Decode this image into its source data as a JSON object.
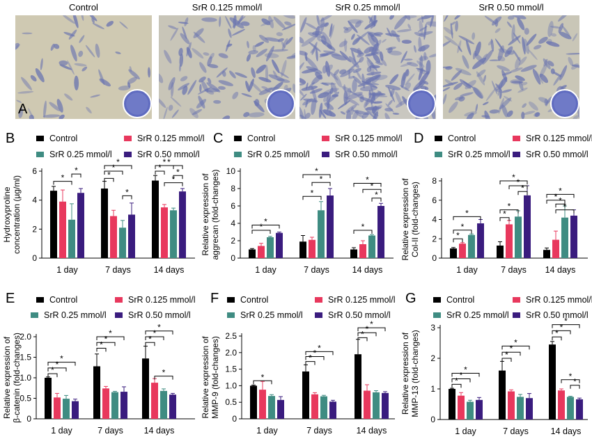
{
  "colors": {
    "Control": "#000000",
    "SrR 0.125 mmol/l": "#e8385d",
    "SrR 0.25 mmol/l": "#3f8c82",
    "SrR 0.50 mmol/l": "#3a1c7e"
  },
  "panel_a": {
    "letter": "A",
    "columns": [
      "Control",
      "SrR 0.125 mmol/l",
      "SrR 0.25 mmol/l",
      "SrR 0.50 mmol/l"
    ]
  },
  "legend_labels": [
    "Control",
    "SrR 0.125 mmol/l",
    "SrR 0.25 mmol/l",
    "SrR 0.50 mmol/l"
  ],
  "chart_data": [
    {
      "panel": "B",
      "type": "bar",
      "categories": [
        "1 day",
        "7 days",
        "14 days"
      ],
      "ylabel": [
        "Hydroxyproline",
        "concentration (µg/ml)"
      ],
      "ylim": [
        0,
        6
      ],
      "yticks": [
        0,
        2,
        4,
        6
      ],
      "series": [
        {
          "name": "Control",
          "values": [
            4.65,
            4.8,
            5.35
          ],
          "errors": [
            0.3,
            0.5,
            0.35
          ]
        },
        {
          "name": "SrR 0.125 mmol/l",
          "values": [
            3.9,
            2.9,
            3.5
          ],
          "errors": [
            0.8,
            0.4,
            0.2
          ]
        },
        {
          "name": "SrR 0.25 mmol/l",
          "values": [
            2.65,
            2.1,
            3.3
          ],
          "errors": [
            1.1,
            0.5,
            0.15
          ]
        },
        {
          "name": "SrR 0.50 mmol/l",
          "values": [
            4.5,
            3.0,
            4.6
          ],
          "errors": [
            0.3,
            0.8,
            0.2
          ]
        }
      ],
      "significance": [
        {
          "group": 0,
          "from": 0,
          "to": 2,
          "y": 5.3
        },
        {
          "group": 0,
          "from": 2,
          "to": 3,
          "y": 5.8
        },
        {
          "group": 1,
          "from": 0,
          "to": 1,
          "y": 5.5
        },
        {
          "group": 1,
          "from": 0,
          "to": 2,
          "y": 6.0
        },
        {
          "group": 1,
          "from": 0,
          "to": 3,
          "y": 6.5
        },
        {
          "group": 1,
          "from": 2,
          "to": 3,
          "y": 4.3
        },
        {
          "group": 2,
          "from": 0,
          "to": 1,
          "y": 6.0
        },
        {
          "group": 2,
          "from": 0,
          "to": 2,
          "y": 6.5
        },
        {
          "group": 2,
          "from": 0,
          "to": 3,
          "y": 7.0
        },
        {
          "group": 2,
          "from": 1,
          "to": 3,
          "y": 5.2
        },
        {
          "group": 2,
          "from": 2,
          "to": 3,
          "y": 5.7
        }
      ]
    },
    {
      "panel": "C",
      "type": "bar",
      "categories": [
        "1 day",
        "7 days",
        "14 days"
      ],
      "ylabel": [
        "Relative expression of",
        "aggrecan (fold-changes)"
      ],
      "ylim": [
        0,
        10
      ],
      "yticks": [
        0,
        2,
        4,
        6,
        8,
        10
      ],
      "series": [
        {
          "name": "Control",
          "values": [
            1.0,
            1.9,
            1.0
          ],
          "errors": [
            0.1,
            0.7,
            0.2
          ]
        },
        {
          "name": "SrR 0.125 mmol/l",
          "values": [
            1.4,
            2.1,
            1.6
          ],
          "errors": [
            0.3,
            0.3,
            0.4
          ]
        },
        {
          "name": "SrR 0.25 mmol/l",
          "values": [
            2.4,
            5.5,
            2.6
          ],
          "errors": [
            0.1,
            1.0,
            0.1
          ]
        },
        {
          "name": "SrR 0.50 mmol/l",
          "values": [
            2.9,
            7.2,
            6.0
          ],
          "errors": [
            0.1,
            0.8,
            0.3
          ]
        }
      ],
      "significance": [
        {
          "group": 0,
          "from": 0,
          "to": 2,
          "y": 3.2
        },
        {
          "group": 0,
          "from": 0,
          "to": 3,
          "y": 3.8
        },
        {
          "group": 1,
          "from": 0,
          "to": 2,
          "y": 7.1
        },
        {
          "group": 1,
          "from": 0,
          "to": 3,
          "y": 9.6
        },
        {
          "group": 1,
          "from": 1,
          "to": 3,
          "y": 8.7
        },
        {
          "group": 2,
          "from": 0,
          "to": 2,
          "y": 3.2
        },
        {
          "group": 2,
          "from": 0,
          "to": 3,
          "y": 8.6
        },
        {
          "group": 2,
          "from": 1,
          "to": 3,
          "y": 7.9
        },
        {
          "group": 2,
          "from": 2,
          "to": 3,
          "y": 6.9
        }
      ]
    },
    {
      "panel": "D",
      "type": "bar",
      "categories": [
        "1 day",
        "7 days",
        "14 days"
      ],
      "ylabel": [
        "Relative expression of",
        "Col-II (fold-changes)"
      ],
      "ylim": [
        0,
        8
      ],
      "yticks": [
        0,
        2,
        4,
        6,
        8
      ],
      "series": [
        {
          "name": "Control",
          "values": [
            1.0,
            1.3,
            0.85
          ],
          "errors": [
            0.1,
            0.4,
            0.2
          ]
        },
        {
          "name": "SrR 0.125 mmol/l",
          "values": [
            1.5,
            3.5,
            1.9
          ],
          "errors": [
            0.1,
            0.4,
            0.9
          ]
        },
        {
          "name": "SrR 0.25 mmol/l",
          "values": [
            2.4,
            4.3,
            4.2
          ],
          "errors": [
            0.1,
            0.6,
            1.2
          ]
        },
        {
          "name": "SrR 0.50 mmol/l",
          "values": [
            3.6,
            6.5,
            4.4
          ],
          "errors": [
            0.4,
            1.0,
            0.6
          ]
        }
      ],
      "significance": [
        {
          "group": 0,
          "from": 0,
          "to": 1,
          "y": 2.0
        },
        {
          "group": 0,
          "from": 0,
          "to": 2,
          "y": 2.9
        },
        {
          "group": 0,
          "from": 0,
          "to": 3,
          "y": 4.3
        },
        {
          "group": 1,
          "from": 0,
          "to": 1,
          "y": 4.2
        },
        {
          "group": 1,
          "from": 0,
          "to": 2,
          "y": 5.0
        },
        {
          "group": 1,
          "from": 0,
          "to": 3,
          "y": 8.0
        },
        {
          "group": 1,
          "from": 1,
          "to": 3,
          "y": 7.5
        },
        {
          "group": 1,
          "from": 2,
          "to": 3,
          "y": 6.9
        },
        {
          "group": 2,
          "from": 0,
          "to": 2,
          "y": 6.0
        },
        {
          "group": 2,
          "from": 0,
          "to": 3,
          "y": 6.6
        },
        {
          "group": 2,
          "from": 1,
          "to": 2,
          "y": 5.6
        },
        {
          "group": 2,
          "from": 1,
          "to": 3,
          "y": 5.0
        }
      ]
    },
    {
      "panel": "E",
      "type": "bar",
      "categories": [
        "1 day",
        "7 days",
        "14 days"
      ],
      "ylabel": [
        "Relative expression of",
        "β-catenin (fold-changes)"
      ],
      "ylim": [
        0,
        2.0
      ],
      "yticks": [
        0,
        0.5,
        1.0,
        1.5,
        2.0
      ],
      "series": [
        {
          "name": "Control",
          "values": [
            1.0,
            1.28,
            1.47
          ],
          "errors": [
            0.02,
            0.3,
            0.3
          ]
        },
        {
          "name": "SrR 0.125 mmol/l",
          "values": [
            0.52,
            0.74,
            0.88
          ],
          "errors": [
            0.1,
            0.05,
            0.1
          ]
        },
        {
          "name": "SrR 0.25 mmol/l",
          "values": [
            0.49,
            0.65,
            0.68
          ],
          "errors": [
            0.08,
            0.02,
            0.05
          ]
        },
        {
          "name": "SrR 0.50 mmol/l",
          "values": [
            0.43,
            0.66,
            0.59
          ],
          "errors": [
            0.05,
            0.12,
            0.03
          ]
        }
      ],
      "significance": [
        {
          "group": 0,
          "from": 0,
          "to": 1,
          "y": 1.1
        },
        {
          "group": 0,
          "from": 0,
          "to": 2,
          "y": 1.24
        },
        {
          "group": 0,
          "from": 0,
          "to": 3,
          "y": 1.38
        },
        {
          "group": 1,
          "from": 0,
          "to": 1,
          "y": 1.72
        },
        {
          "group": 1,
          "from": 0,
          "to": 2,
          "y": 1.86
        },
        {
          "group": 1,
          "from": 0,
          "to": 3,
          "y": 2.0
        },
        {
          "group": 2,
          "from": 0,
          "to": 1,
          "y": 1.86
        },
        {
          "group": 2,
          "from": 0,
          "to": 2,
          "y": 2.0
        },
        {
          "group": 2,
          "from": 0,
          "to": 3,
          "y": 2.14
        },
        {
          "group": 2,
          "from": 1,
          "to": 3,
          "y": 1.04
        }
      ]
    },
    {
      "panel": "F",
      "type": "bar",
      "categories": [
        "1 day",
        "7 days",
        "14 days"
      ],
      "ylabel": [
        "Relative expression of",
        "MMP-9 (fold-changes)"
      ],
      "ylim": [
        0,
        2.5
      ],
      "yticks": [
        0,
        0.5,
        1.0,
        1.5,
        2.0,
        2.5
      ],
      "series": [
        {
          "name": "Control",
          "values": [
            1.0,
            1.43,
            1.95
          ],
          "errors": [
            0.02,
            0.2,
            0.45
          ]
        },
        {
          "name": "SrR 0.125 mmol/l",
          "values": [
            0.88,
            0.74,
            0.85
          ],
          "errors": [
            0.25,
            0.05,
            0.18
          ]
        },
        {
          "name": "SrR 0.25 mmol/l",
          "values": [
            0.69,
            0.68,
            0.8
          ],
          "errors": [
            0.04,
            0.03,
            0.05
          ]
        },
        {
          "name": "SrR 0.50 mmol/l",
          "values": [
            0.57,
            0.52,
            0.78
          ],
          "errors": [
            0.1,
            0.04,
            0.04
          ]
        }
      ],
      "significance": [
        {
          "group": 0,
          "from": 0,
          "to": 2,
          "y": 1.15
        },
        {
          "group": 1,
          "from": 0,
          "to": 1,
          "y": 1.73
        },
        {
          "group": 1,
          "from": 0,
          "to": 2,
          "y": 1.88
        },
        {
          "group": 1,
          "from": 0,
          "to": 3,
          "y": 2.03
        },
        {
          "group": 2,
          "from": 0,
          "to": 1,
          "y": 2.45
        },
        {
          "group": 2,
          "from": 0,
          "to": 2,
          "y": 2.6
        },
        {
          "group": 2,
          "from": 0,
          "to": 3,
          "y": 2.75
        }
      ]
    },
    {
      "panel": "G",
      "type": "bar",
      "categories": [
        "1 day",
        "7 days",
        "14 days"
      ],
      "ylabel": [
        "Relative expression of",
        "MMP-13 (fold-changes)"
      ],
      "ylim": [
        0,
        3
      ],
      "yticks": [
        0,
        1,
        2,
        3
      ],
      "series": [
        {
          "name": "Control",
          "values": [
            1.0,
            1.6,
            2.45
          ],
          "errors": [
            0.02,
            0.3,
            0.1
          ]
        },
        {
          "name": "SrR 0.125 mmol/l",
          "values": [
            0.78,
            0.92,
            0.95
          ],
          "errors": [
            0.1,
            0.05,
            0.05
          ]
        },
        {
          "name": "SrR 0.25 mmol/l",
          "values": [
            0.58,
            0.74,
            0.74
          ],
          "errors": [
            0.05,
            0.08,
            0.02
          ]
        },
        {
          "name": "SrR 0.50 mmol/l",
          "values": [
            0.64,
            0.7,
            0.66
          ],
          "errors": [
            0.08,
            0.15,
            0.04
          ]
        }
      ],
      "significance": [
        {
          "group": 0,
          "from": 0,
          "to": 1,
          "y": 1.15
        },
        {
          "group": 0,
          "from": 0,
          "to": 2,
          "y": 1.33
        },
        {
          "group": 0,
          "from": 0,
          "to": 3,
          "y": 1.51
        },
        {
          "group": 1,
          "from": 0,
          "to": 1,
          "y": 2.0
        },
        {
          "group": 1,
          "from": 0,
          "to": 2,
          "y": 2.2
        },
        {
          "group": 1,
          "from": 0,
          "to": 3,
          "y": 2.4
        },
        {
          "group": 2,
          "from": 0,
          "to": 1,
          "y": 2.7
        },
        {
          "group": 2,
          "from": 0,
          "to": 2,
          "y": 2.9
        },
        {
          "group": 2,
          "from": 0,
          "to": 3,
          "y": 3.1
        },
        {
          "group": 2,
          "from": 1,
          "to": 3,
          "y": 1.3
        },
        {
          "group": 2,
          "from": 2,
          "to": 3,
          "y": 1.12
        }
      ]
    }
  ]
}
